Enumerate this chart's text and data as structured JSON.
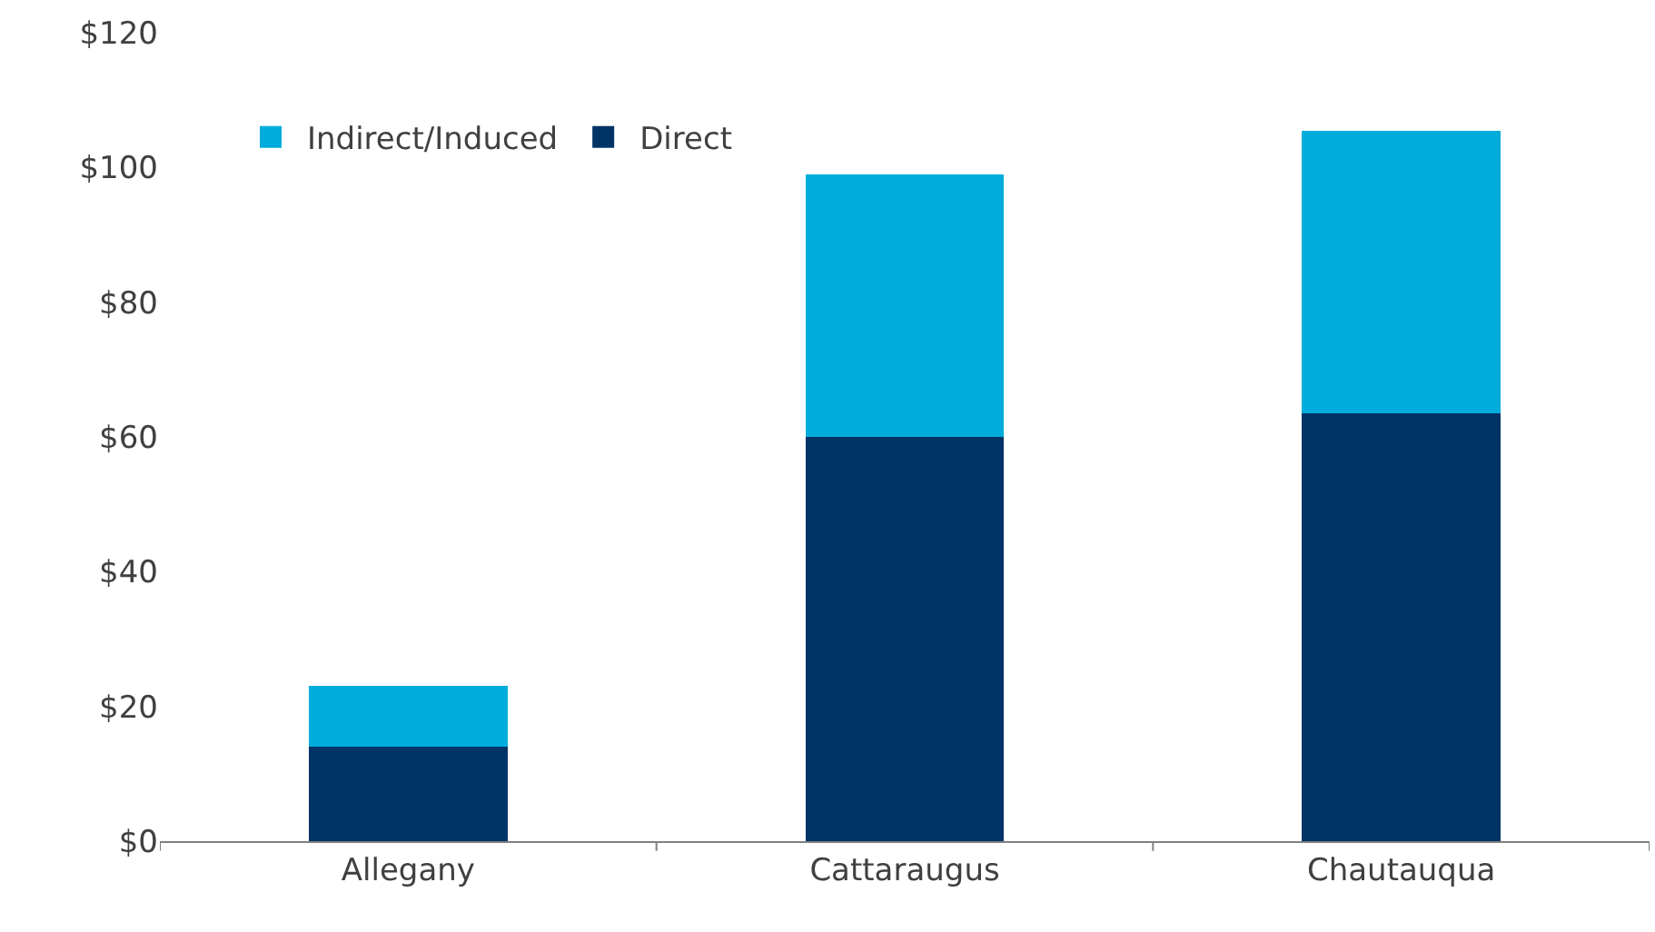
{
  "chart_data": {
    "type": "bar",
    "stacked": true,
    "categories": [
      "Allegany",
      "Cattaraugus",
      "Chautauqua"
    ],
    "series": [
      {
        "name": "Direct",
        "color": "#003366",
        "values": [
          14,
          60,
          63.5
        ]
      },
      {
        "name": "Indirect/Induced",
        "color": "#00acdc",
        "values": [
          9,
          39,
          42
        ]
      }
    ],
    "ylim": [
      0,
      120
    ],
    "yticks": [
      {
        "value": 0,
        "label": "$0"
      },
      {
        "value": 20,
        "label": "$20"
      },
      {
        "value": 40,
        "label": "$40"
      },
      {
        "value": 60,
        "label": "$60"
      },
      {
        "value": 80,
        "label": "$80"
      },
      {
        "value": 100,
        "label": "$100"
      },
      {
        "value": 120,
        "label": "$120"
      }
    ],
    "legend": "top left"
  }
}
